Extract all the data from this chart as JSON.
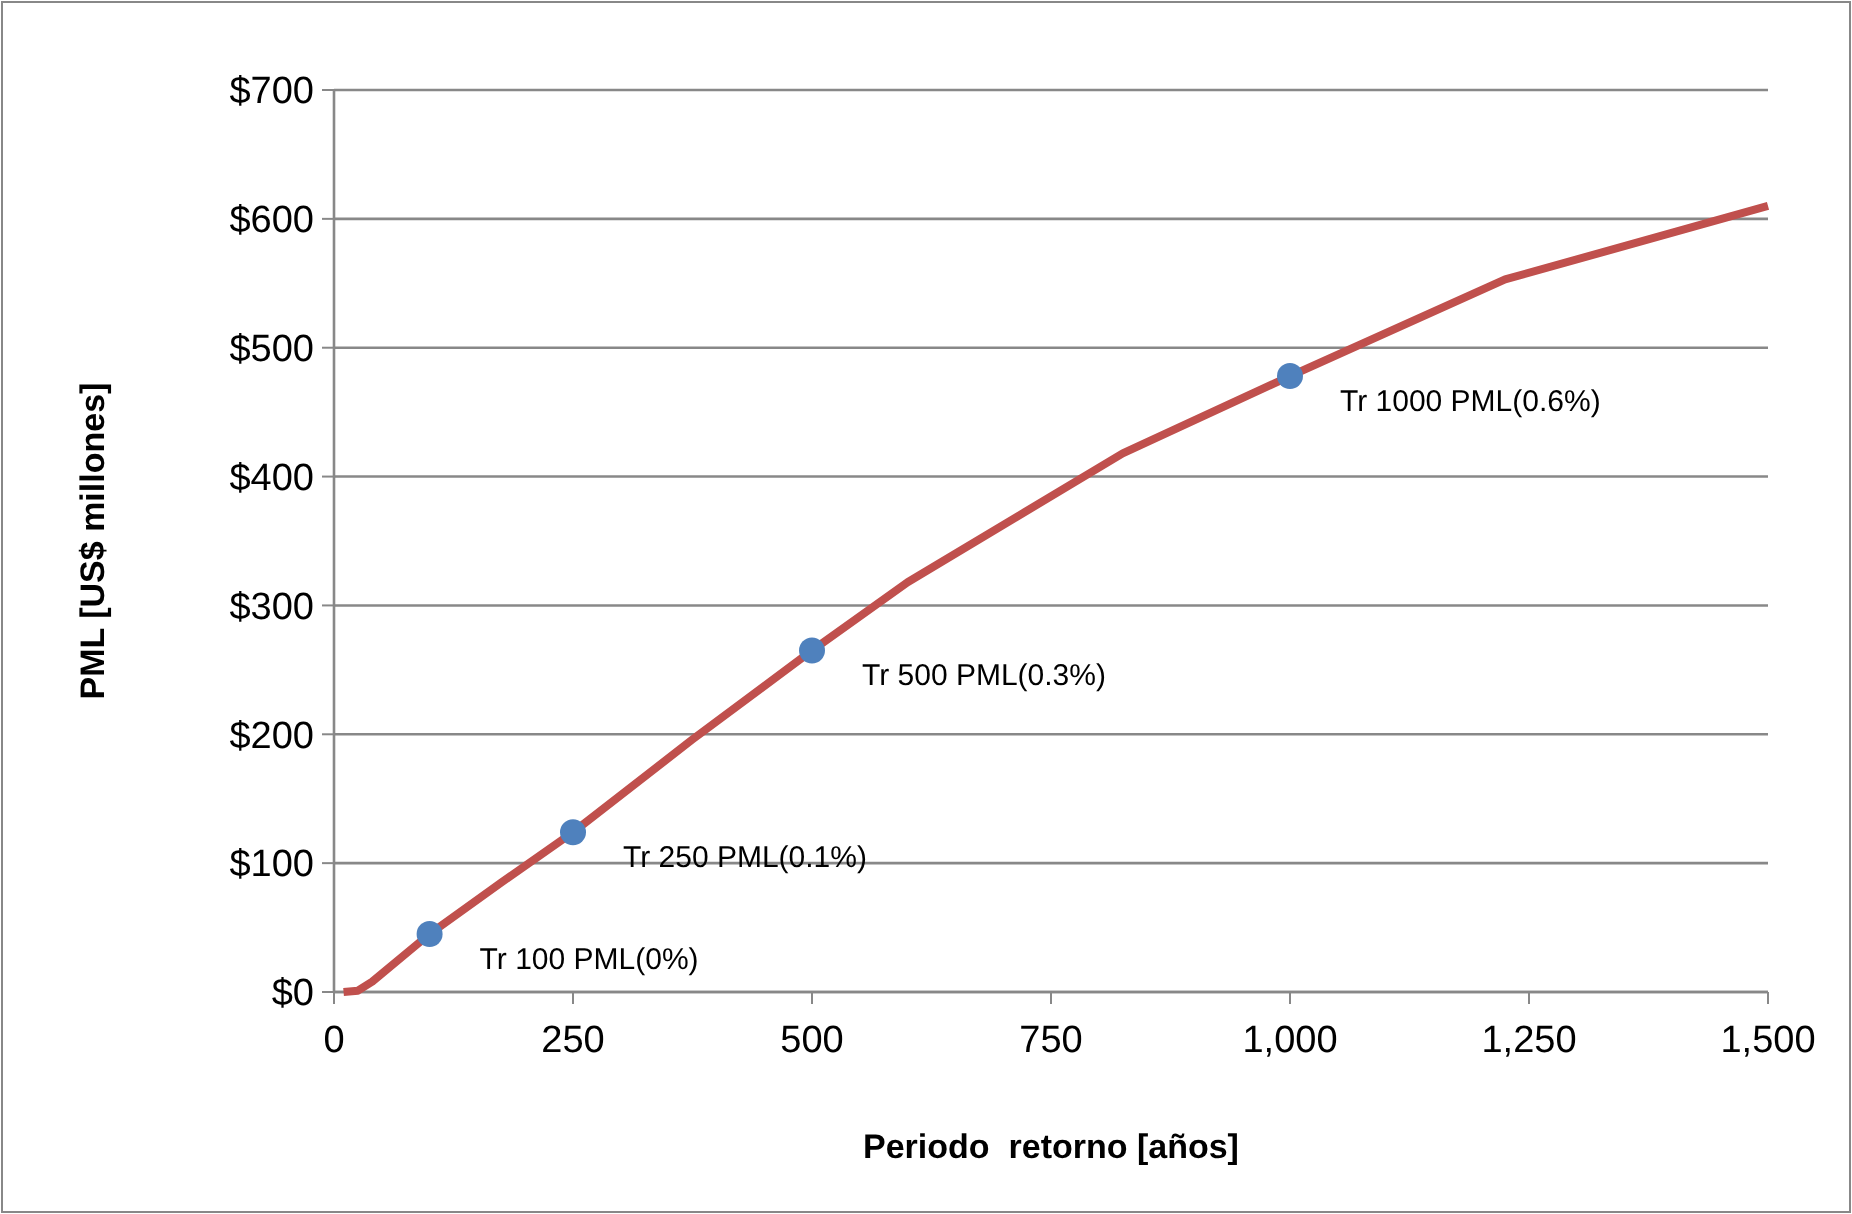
{
  "chart_data": {
    "type": "line",
    "xlabel": "Periodo  retorno [años]",
    "ylabel": "PML [US$ millones]",
    "xlim": [
      0,
      1500
    ],
    "xticks": [
      0,
      250,
      500,
      750,
      {
        "value": 1000,
        "label": "1,000"
      },
      {
        "value": 1250,
        "label": "1,250"
      },
      {
        "value": 1500,
        "label": "1,500"
      }
    ],
    "ylim": [
      0,
      700
    ],
    "yticks": [
      {
        "value": 0,
        "label": "$0"
      },
      {
        "value": 100,
        "label": "$100"
      },
      {
        "value": 200,
        "label": "$200"
      },
      {
        "value": 300,
        "label": "$300"
      },
      {
        "value": 400,
        "label": "$400"
      },
      {
        "value": 500,
        "label": "$500"
      },
      {
        "value": 600,
        "label": "$600"
      },
      {
        "value": 700,
        "label": "$700"
      }
    ],
    "grid": "y",
    "series": [
      {
        "color": "#c0504d",
        "marker": "none",
        "x": [
          10,
          25,
          40,
          100,
          175,
          250,
          375,
          500,
          600,
          825,
          1000,
          1225,
          1500
        ],
        "values": [
          0,
          1,
          8,
          45,
          85,
          124,
          196,
          265,
          318,
          418,
          478,
          553,
          610
        ]
      },
      {
        "type": "scatter",
        "color": "#4f81bd",
        "marker": "circle",
        "x": [
          100,
          250,
          500,
          1000
        ],
        "values": [
          45,
          124,
          265,
          478
        ]
      }
    ],
    "annotations": [
      {
        "text": "Tr 100 PML(0%)",
        "x": 100,
        "y": 45
      },
      {
        "text": "Tr 250 PML(0.1%)",
        "x": 250,
        "y": 124
      },
      {
        "text": "Tr 500 PML(0.3%)",
        "x": 500,
        "y": 265
      },
      {
        "text": "Tr 1000 PML(0.6%)",
        "x": 1000,
        "y": 478
      }
    ]
  }
}
